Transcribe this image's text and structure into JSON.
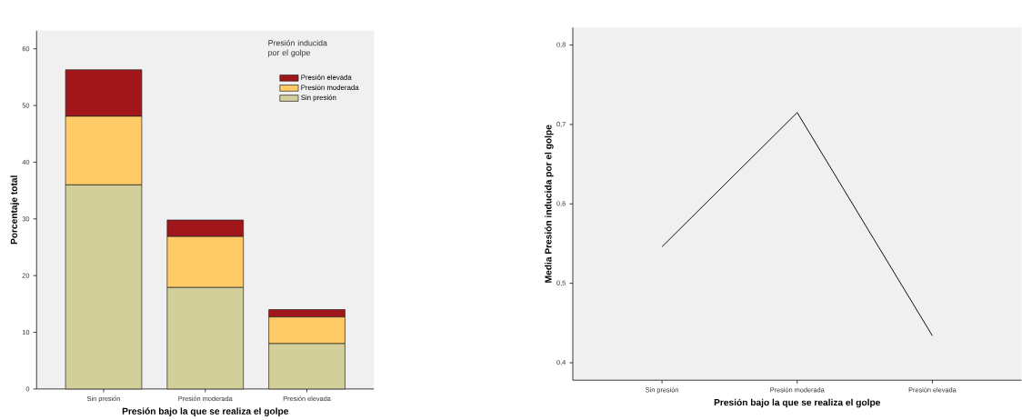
{
  "chart_data": [
    {
      "type": "bar",
      "stacked": true,
      "xlabel": "Presión bajo la que se realiza el golpe",
      "ylabel": "Porcentaje total",
      "legend_title": "Presión inducida por el golpe",
      "legend": "top right",
      "categories": [
        "Sin presión",
        "Presión moderada",
        "Presión elevada"
      ],
      "ylim": [
        0,
        63.2
      ],
      "yticks": [
        0,
        10,
        20,
        30,
        40,
        50,
        60
      ],
      "series": [
        {
          "name": "Sin presión",
          "color": "#d3cf9a",
          "values": [
            36.0,
            17.9,
            8.0
          ]
        },
        {
          "name": "Presión moderada",
          "color": "#fecb67",
          "values": [
            12.1,
            9.0,
            4.7
          ]
        },
        {
          "name": "Presión elevada",
          "color": "#a0161a",
          "values": [
            8.2,
            2.9,
            1.3
          ]
        }
      ]
    },
    {
      "type": "line",
      "xlabel": "Presión bajo la que se realiza el golpe",
      "ylabel": "Media Presión inducida por el golpe",
      "categories": [
        "Sin presión",
        "Presión moderada",
        "Presión elevada"
      ],
      "ylim": [
        0.378,
        0.822
      ],
      "yticks": [
        {
          "value": 0.4,
          "label": "0,4"
        },
        {
          "value": 0.5,
          "label": "0,5"
        },
        {
          "value": 0.6,
          "label": "0,6"
        },
        {
          "value": 0.7,
          "label": "0,7"
        },
        {
          "value": 0.8,
          "label": "0,8"
        }
      ],
      "marker": "none",
      "line_style": "solid",
      "series": [
        {
          "color": "#000000",
          "values": [
            0.546,
            0.715,
            0.434
          ]
        }
      ]
    }
  ]
}
